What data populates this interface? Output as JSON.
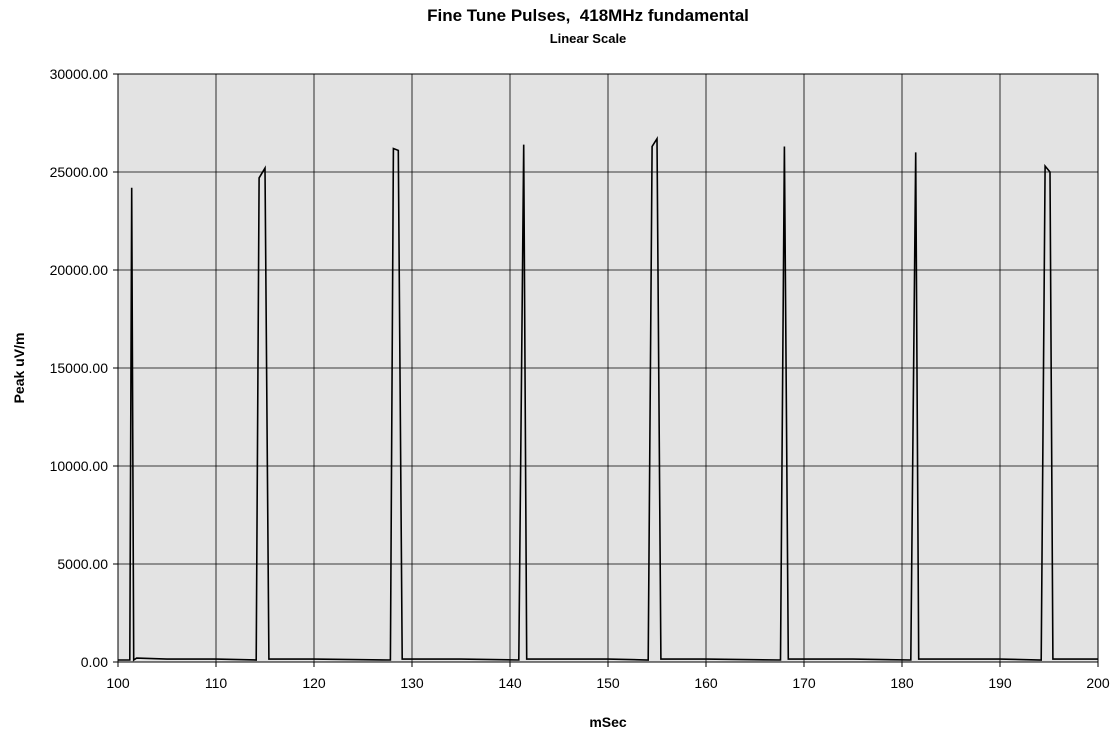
{
  "chart_data": {
    "type": "line",
    "title": "Fine Tune Pulses,  418MHz fundamental",
    "subtitle": "Linear Scale",
    "xlabel": "mSec",
    "ylabel": "Peak uV/m",
    "xlim": [
      100,
      200
    ],
    "ylim": [
      0,
      30000
    ],
    "x_ticks": [
      "100",
      "110",
      "120",
      "130",
      "140",
      "150",
      "160",
      "170",
      "180",
      "190",
      "200"
    ],
    "y_ticks": [
      "0.00",
      "5000.00",
      "10000.00",
      "15000.00",
      "20000.00",
      "25000.00",
      "30000.00"
    ],
    "grid": true,
    "legend": "none",
    "colors": {
      "plot_background": "#e3e3e3",
      "line": "#000000",
      "grid": "#000000"
    },
    "series": [
      {
        "x": [
          100,
          101.2,
          101.4,
          101.6,
          101.9,
          105,
          110,
          114.1,
          114.4,
          115.0,
          115.4,
          120,
          127.8,
          128.1,
          128.6,
          129.0,
          135,
          140.9,
          141.4,
          141.7,
          145,
          150,
          154.1,
          154.5,
          155.0,
          155.4,
          160,
          167.6,
          168.0,
          168.4,
          175,
          180.9,
          181.4,
          181.7,
          185,
          190,
          194.2,
          194.6,
          195.1,
          195.4,
          200
        ],
        "y": [
          100,
          100,
          24200,
          100,
          200,
          150,
          150,
          100,
          24700,
          25200,
          150,
          150,
          100,
          26200,
          26100,
          150,
          150,
          100,
          26400,
          150,
          150,
          150,
          100,
          26300,
          26700,
          150,
          150,
          100,
          26300,
          150,
          150,
          100,
          26000,
          150,
          150,
          150,
          100,
          25300,
          25000,
          150,
          150
        ]
      }
    ]
  }
}
